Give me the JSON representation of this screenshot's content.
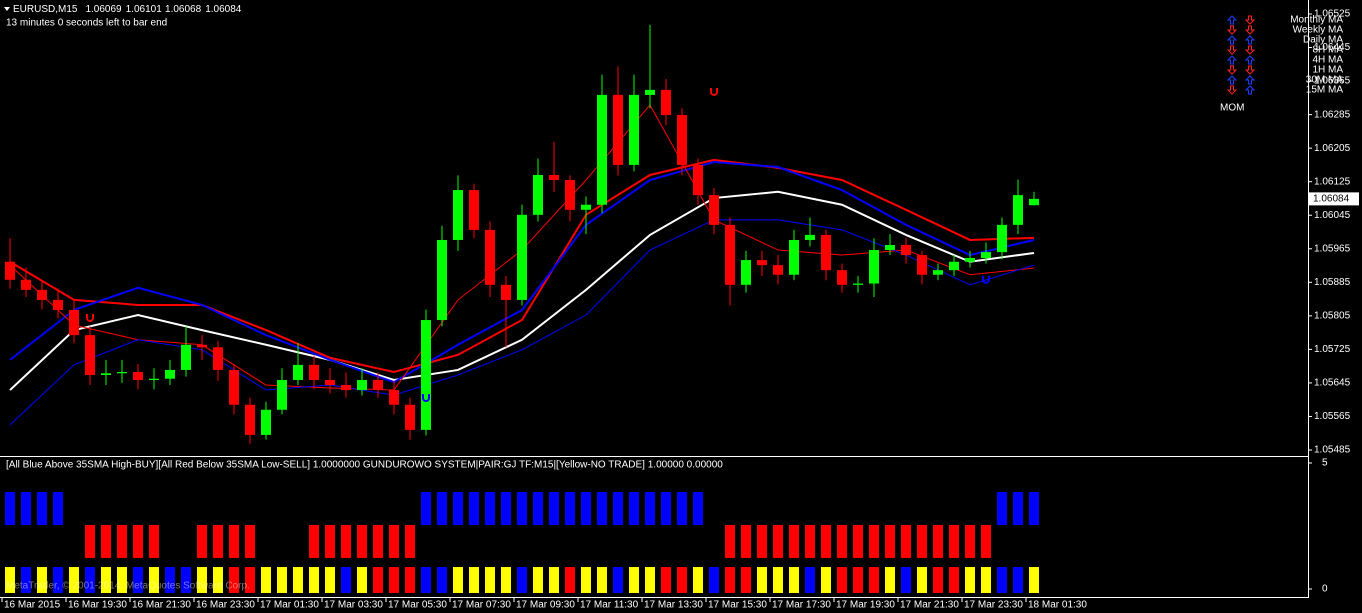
{
  "header": {
    "symbol": "EURUSD,M15",
    "timer": "13 minutes 0 seconds left to bar end"
  },
  "chart_data": [
    {
      "type": "candlestick",
      "up_color": "#00ff00",
      "down_color": "#ff0000",
      "ylim": [
        1.05485,
        1.06525
      ],
      "yticks": [
        1.06525,
        1.06445,
        1.06365,
        1.06285,
        1.06205,
        1.06125,
        1.06045,
        1.05965,
        1.05885,
        1.05805,
        1.05725,
        1.05645,
        1.05565,
        1.05485
      ],
      "xticks": [
        {
          "value": 0,
          "label": "16 Mar 2015"
        },
        {
          "value": 4,
          "label": "16 Mar 19:30"
        },
        {
          "value": 8,
          "label": "16 Mar 21:30"
        },
        {
          "value": 12,
          "label": "16 Mar 23:30"
        },
        {
          "value": 16,
          "label": "17 Mar 01:30"
        },
        {
          "value": 20,
          "label": "17 Mar 03:30"
        },
        {
          "value": 24,
          "label": "17 Mar 05:30"
        },
        {
          "value": 28,
          "label": "17 Mar 07:30"
        },
        {
          "value": 32,
          "label": "17 Mar 09:30"
        },
        {
          "value": 36,
          "label": "17 Mar 11:30"
        },
        {
          "value": 40,
          "label": "17 Mar 13:30"
        },
        {
          "value": 44,
          "label": "17 Mar 15:30"
        },
        {
          "value": 48,
          "label": "17 Mar 17:30"
        },
        {
          "value": 52,
          "label": "17 Mar 19:30"
        },
        {
          "value": 56,
          "label": "17 Mar 21:30"
        },
        {
          "value": 60,
          "label": "17 Mar 23:30"
        },
        {
          "value": 64,
          "label": "18 Mar 01:30"
        }
      ],
      "ohlc": [
        [
          1.05934,
          1.0599,
          1.0587,
          1.05891
        ],
        [
          1.05891,
          1.0592,
          1.0585,
          1.05867
        ],
        [
          1.05867,
          1.0589,
          1.0582,
          1.05843
        ],
        [
          1.05843,
          1.0587,
          1.058,
          1.05819
        ],
        [
          1.05819,
          1.0584,
          1.0574,
          1.05759
        ],
        [
          1.05759,
          1.0578,
          1.0564,
          1.05664
        ],
        [
          1.05664,
          1.057,
          1.0564,
          1.05668
        ],
        [
          1.05668,
          1.057,
          1.05645,
          1.05671
        ],
        [
          1.05671,
          1.0569,
          1.0563,
          1.05652
        ],
        [
          1.05652,
          1.0568,
          1.0563,
          1.05655
        ],
        [
          1.05655,
          1.057,
          1.0564,
          1.05676
        ],
        [
          1.05676,
          1.0578,
          1.0566,
          1.05736
        ],
        [
          1.05736,
          1.0576,
          1.057,
          1.0573
        ],
        [
          1.0573,
          1.05745,
          1.0565,
          1.05676
        ],
        [
          1.05676,
          1.0569,
          1.0557,
          1.05593
        ],
        [
          1.05593,
          1.0561,
          1.055,
          1.05521
        ],
        [
          1.05521,
          1.056,
          1.0551,
          1.05581
        ],
        [
          1.05581,
          1.0568,
          1.0557,
          1.05652
        ],
        [
          1.05652,
          1.0574,
          1.0564,
          1.05688
        ],
        [
          1.05688,
          1.0571,
          1.0563,
          1.05652
        ],
        [
          1.05652,
          1.0568,
          1.0562,
          1.0564
        ],
        [
          1.0564,
          1.0567,
          1.0561,
          1.05628
        ],
        [
          1.05628,
          1.0568,
          1.05615,
          1.05652
        ],
        [
          1.05652,
          1.0567,
          1.0561,
          1.05628
        ],
        [
          1.05628,
          1.0565,
          1.0557,
          1.05593
        ],
        [
          1.05593,
          1.0561,
          1.0551,
          1.05533
        ],
        [
          1.05533,
          1.0582,
          1.0552,
          1.05795
        ],
        [
          1.05795,
          1.0602,
          1.0578,
          1.05986
        ],
        [
          1.05986,
          1.0614,
          1.0596,
          1.06105
        ],
        [
          1.06105,
          1.0612,
          1.0599,
          1.0601
        ],
        [
          1.0601,
          1.0603,
          1.0585,
          1.05879
        ],
        [
          1.05879,
          1.059,
          1.0573,
          1.05843
        ],
        [
          1.05843,
          1.0607,
          1.0583,
          1.06046
        ],
        [
          1.06046,
          1.0618,
          1.0603,
          1.06141
        ],
        [
          1.06141,
          1.0622,
          1.061,
          1.06129
        ],
        [
          1.06129,
          1.0614,
          1.0603,
          1.06058
        ],
        [
          1.06058,
          1.0609,
          1.06,
          1.0607
        ],
        [
          1.0607,
          1.0638,
          1.0605,
          1.06332
        ],
        [
          1.06332,
          1.064,
          1.0614,
          1.06165
        ],
        [
          1.06165,
          1.0638,
          1.0615,
          1.06332
        ],
        [
          1.06332,
          1.06499,
          1.063,
          1.06344
        ],
        [
          1.06344,
          1.0637,
          1.0626,
          1.06284
        ],
        [
          1.06284,
          1.063,
          1.0614,
          1.06165
        ],
        [
          1.06165,
          1.0618,
          1.0607,
          1.06093
        ],
        [
          1.06093,
          1.0611,
          1.06,
          1.06022
        ],
        [
          1.06022,
          1.0604,
          1.0583,
          1.05879
        ],
        [
          1.05879,
          1.0596,
          1.0586,
          1.05938
        ],
        [
          1.05938,
          1.0596,
          1.059,
          1.05926
        ],
        [
          1.05926,
          1.0595,
          1.0588,
          1.05903
        ],
        [
          1.05903,
          1.0601,
          1.0589,
          1.05986
        ],
        [
          1.05986,
          1.0604,
          1.0597,
          1.05998
        ],
        [
          1.05998,
          1.0601,
          1.0589,
          1.05914
        ],
        [
          1.05914,
          1.0593,
          1.0586,
          1.05879
        ],
        [
          1.05879,
          1.059,
          1.0586,
          1.05882
        ],
        [
          1.05882,
          1.0599,
          1.0585,
          1.05962
        ],
        [
          1.05962,
          1.06,
          1.0595,
          1.05974
        ],
        [
          1.05974,
          1.0599,
          1.0593,
          1.0595
        ],
        [
          1.0595,
          1.0596,
          1.0588,
          1.05903
        ],
        [
          1.05903,
          1.0593,
          1.0589,
          1.05914
        ],
        [
          1.05914,
          1.0595,
          1.059,
          1.05934
        ],
        [
          1.05934,
          1.0596,
          1.0592,
          1.05943
        ],
        [
          1.05943,
          1.0598,
          1.0593,
          1.05957
        ],
        [
          1.05957,
          1.0604,
          1.0594,
          1.06022
        ],
        [
          1.06022,
          1.0613,
          1.06,
          1.06093
        ],
        [
          1.06069,
          1.06101,
          1.06068,
          1.06084
        ]
      ],
      "ma_x": [
        0,
        4,
        8,
        12,
        16,
        20,
        24,
        28,
        32,
        36,
        40,
        44,
        48,
        52,
        56,
        60,
        64
      ],
      "series": [
        {
          "color": "#ff0000",
          "width": 2,
          "values": [
            1.05934,
            1.05843,
            1.05831,
            1.05831,
            1.05771,
            1.05705,
            1.05671,
            1.05712,
            1.05795,
            1.06046,
            1.06141,
            1.06177,
            1.06158,
            1.06129,
            1.06058,
            1.05986,
            1.05991
          ]
        },
        {
          "color": "#ffffff",
          "width": 2,
          "values": [
            1.05628,
            1.05771,
            1.05807,
            1.05771,
            1.05736,
            1.057,
            1.05652,
            1.05676,
            1.05748,
            1.05867,
            1.05998,
            1.06086,
            1.06101,
            1.0607,
            1.05998,
            1.05934,
            1.05955
          ]
        },
        {
          "color": "#0000ff",
          "width": 2,
          "values": [
            1.057,
            1.05819,
            1.05872,
            1.05831,
            1.05759,
            1.057,
            1.05647,
            1.05736,
            1.05819,
            1.06022,
            1.06129,
            1.06172,
            1.0616,
            1.06105,
            1.06022,
            1.0595,
            1.05986
          ]
        },
        {
          "color": "#ff0000",
          "width": 1,
          "values": [
            1.05926,
            1.05783,
            1.05748,
            1.05736,
            1.0564,
            1.05633,
            1.05628,
            1.05843,
            1.05962,
            1.06129,
            1.06308,
            1.06034,
            1.05962,
            1.0595,
            1.05962,
            1.05903,
            1.05919
          ]
        },
        {
          "color": "#0000ff",
          "width": 1,
          "values": [
            1.05545,
            1.05688,
            1.05748,
            1.05724,
            1.05628,
            1.0564,
            1.05616,
            1.05664,
            1.05724,
            1.05807,
            1.05962,
            1.06034,
            1.06034,
            1.0601,
            1.0595,
            1.05879,
            1.05926
          ]
        }
      ],
      "signals": [
        {
          "x": 5,
          "value": 1.058,
          "color": "#ff0000"
        },
        {
          "x": 44,
          "value": 1.06339,
          "color": "#ff0000"
        },
        {
          "x": 26,
          "value": 1.05609,
          "color": "#0000ff"
        },
        {
          "x": 61,
          "value": 1.05891,
          "color": "#0000ff"
        }
      ]
    },
    {
      "type": "indicator",
      "label": "[All Blue Above 35SMA High-BUY][All Red Below 35SMA Low-SELL] 1.0000000  GUNDUROWO SYSTEM|PAIR:GJ TF:M15|[Yellow-NO TRADE] 1.00000 0.00000",
      "ylim": [
        0,
        5
      ],
      "yticks": [
        0,
        5
      ],
      "rows": [
        {
          "color": "#0000ff",
          "values": [
            1,
            1,
            1,
            1,
            0,
            0,
            0,
            0,
            0,
            0,
            0,
            0,
            0,
            0,
            0,
            0,
            0,
            0,
            0,
            0,
            0,
            0,
            0,
            0,
            0,
            0,
            1,
            1,
            1,
            1,
            1,
            1,
            1,
            1,
            1,
            1,
            1,
            1,
            1,
            1,
            1,
            1,
            1,
            1,
            0,
            0,
            0,
            0,
            0,
            0,
            0,
            0,
            0,
            0,
            0,
            0,
            0,
            0,
            0,
            0,
            0,
            0,
            1,
            1,
            1
          ]
        },
        {
          "color": "#ff0000",
          "values": [
            0,
            0,
            0,
            0,
            0,
            1,
            1,
            1,
            1,
            1,
            0,
            0,
            1,
            1,
            1,
            1,
            0,
            0,
            0,
            1,
            1,
            1,
            1,
            1,
            1,
            1,
            0,
            0,
            0,
            0,
            0,
            0,
            0,
            0,
            0,
            0,
            0,
            0,
            0,
            0,
            0,
            0,
            0,
            0,
            0,
            1,
            1,
            1,
            1,
            1,
            1,
            1,
            1,
            1,
            1,
            1,
            1,
            1,
            1,
            1,
            1,
            1,
            0,
            0,
            0
          ]
        }
      ],
      "bottom_colors": [
        "#ffff00",
        "#0000ff",
        "#ffff00",
        "#0000ff",
        "#ffff00",
        "#0000ff",
        "#ffff00",
        "#ffff00",
        "#0000ff",
        "#ffff00",
        "#0000ff",
        "#0000ff",
        "#ffff00",
        "#ffff00",
        "#ff0000",
        "#ff0000",
        "#ffff00",
        "#ffff00",
        "#ffff00",
        "#ffff00",
        "#ffff00",
        "#0000ff",
        "#ffff00",
        "#ff0000",
        "#ff0000",
        "#ff0000",
        "#0000ff",
        "#0000ff",
        "#ffff00",
        "#ffff00",
        "#ffff00",
        "#ffff00",
        "#0000ff",
        "#ffff00",
        "#ffff00",
        "#ff0000",
        "#ffff00",
        "#ffff00",
        "#0000ff",
        "#ffff00",
        "#ffff00",
        "#ff0000",
        "#ff0000",
        "#ffff00",
        "#0000ff",
        "#ff0000",
        "#ff0000",
        "#ffff00",
        "#ffff00",
        "#ffff00",
        "#0000ff",
        "#ffff00",
        "#ff0000",
        "#ff0000",
        "#ff0000",
        "#ffff00",
        "#0000ff",
        "#ffff00",
        "#ff0000",
        "#ff0000",
        "#ffff00",
        "#ffff00",
        "#0000ff",
        "#0000ff",
        "#ffff00"
      ]
    }
  ],
  "legend": {
    "up_color": "#1e3cff",
    "down_color": "#ff2020",
    "entries": [
      {
        "label": "Monthly MA",
        "arrows": [
          "up",
          "down"
        ]
      },
      {
        "label": "Weekly MA",
        "arrows": [
          "down",
          "down"
        ]
      },
      {
        "label": "Daily MA",
        "arrows": [
          "up",
          "up"
        ]
      },
      {
        "label": "8H MA",
        "arrows": [
          "down",
          "down"
        ]
      },
      {
        "label": "4H MA",
        "arrows": [
          "up",
          "up"
        ]
      },
      {
        "label": "1H MA",
        "arrows": [
          "down",
          "down"
        ]
      },
      {
        "label": "30M MA",
        "arrows": [
          "up",
          "up"
        ]
      },
      {
        "label": "15M MA",
        "arrows": [
          "down",
          "up"
        ]
      }
    ]
  },
  "mom": "MOM",
  "copyright": "MetaTrader, © 2001-2014, MetaQuotes Software Corp."
}
